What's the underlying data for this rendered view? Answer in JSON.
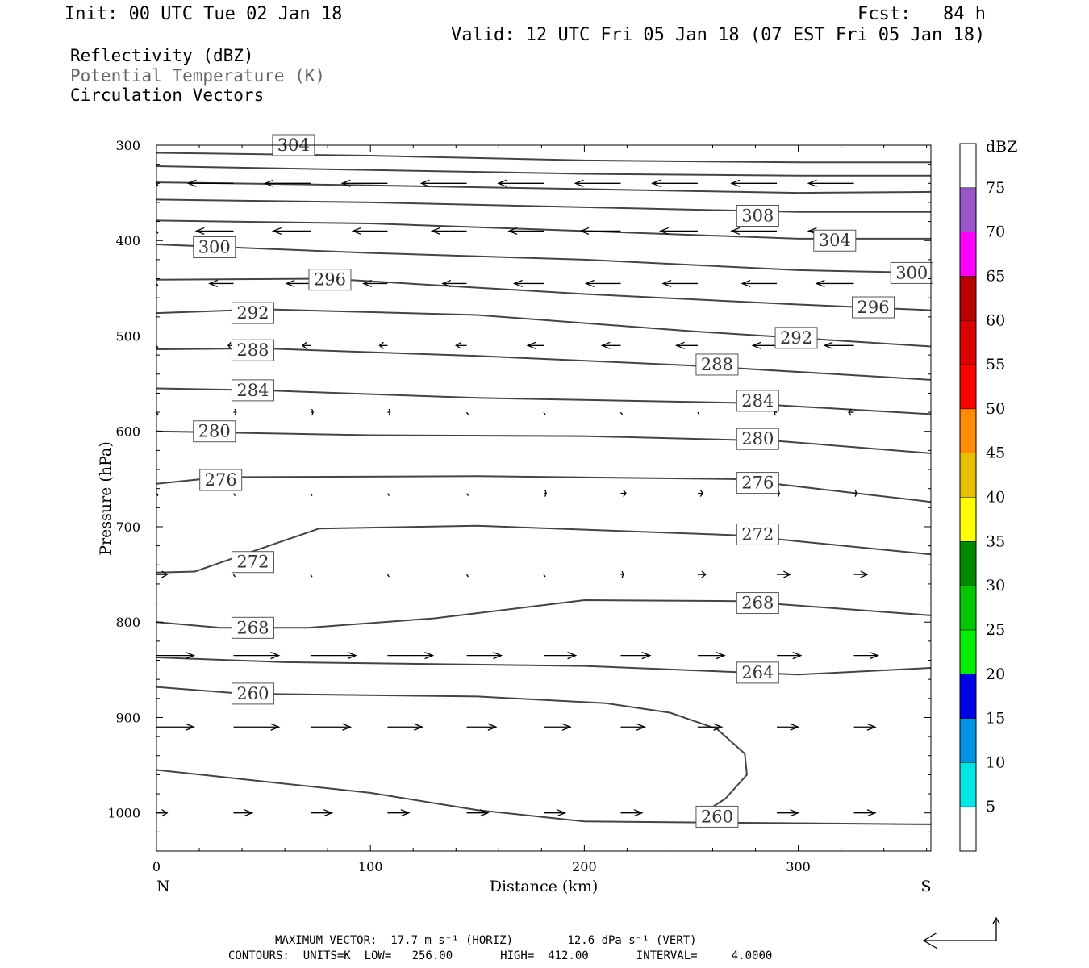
{
  "header": {
    "init": "Init: 00 UTC Tue 02 Jan 18",
    "fcst": "Fcst:   84 h",
    "valid": "Valid: 12 UTC Fri 05 Jan 18 (07 EST Fri 05 Jan 18)"
  },
  "legend": {
    "reflectivity": "Reflectivity (dBZ)",
    "theta": "Potential Temperature (K)",
    "vectors": "Circulation Vectors"
  },
  "footer": {
    "max_vector": "MAXIMUM VECTOR:  17.7 m s⁻¹ (HORIZ)        12.6 dPa s⁻¹ (VERT)",
    "contours": "CONTOURS:  UNITS=K  LOW=   256.00       HIGH=  412.00       INTERVAL=     4.0000"
  },
  "chart_data": {
    "type": "line",
    "title": "",
    "xlabel": "Distance (km)",
    "ylabel": "Pressure (hPa)",
    "xlim": [
      0,
      362
    ],
    "ylim": [
      300,
      1040
    ],
    "y_reversed": true,
    "x_ticks": [
      0,
      100,
      200,
      300
    ],
    "y_ticks": [
      300,
      400,
      500,
      600,
      700,
      800,
      900,
      1000
    ],
    "x_endpoint_labels": {
      "left": "N",
      "right": "S"
    },
    "theta_contours": [
      {
        "label": "308",
        "label_at": [
          272,
          374
        ],
        "points": [
          [
            0,
            308
          ],
          [
            100,
            311
          ],
          [
            200,
            316
          ],
          [
            300,
            318
          ],
          [
            362,
            318
          ]
        ]
      },
      {
        "label": "",
        "points": [
          [
            0,
            322
          ],
          [
            100,
            326
          ],
          [
            200,
            330
          ],
          [
            300,
            332
          ],
          [
            362,
            332
          ]
        ]
      },
      {
        "label": "",
        "points": [
          [
            0,
            339
          ],
          [
            100,
            342
          ],
          [
            200,
            346
          ],
          [
            300,
            350
          ],
          [
            362,
            349
          ]
        ]
      },
      {
        "label": "",
        "points": [
          [
            0,
            357
          ],
          [
            100,
            360
          ],
          [
            200,
            365
          ],
          [
            300,
            370
          ],
          [
            362,
            370
          ]
        ]
      },
      {
        "label": "304",
        "label_at": [
          55,
          300
        ],
        "points": [
          [
            0,
            379
          ],
          [
            100,
            382
          ],
          [
            200,
            390
          ],
          [
            300,
            398
          ],
          [
            362,
            398
          ]
        ]
      },
      {
        "label": "304",
        "label_at": [
          308,
          400
        ],
        "points": [
          [
            0,
            379
          ],
          [
            100,
            382
          ],
          [
            200,
            390
          ],
          [
            300,
            398
          ],
          [
            362,
            398
          ]
        ]
      },
      {
        "label": "300",
        "label_at": [
          18,
          407
        ],
        "points": [
          [
            0,
            404
          ],
          [
            100,
            413
          ],
          [
            200,
            420
          ],
          [
            300,
            431
          ],
          [
            362,
            434
          ]
        ]
      },
      {
        "label": "300",
        "label_at": [
          344,
          434
        ],
        "points": [
          [
            0,
            404
          ],
          [
            100,
            413
          ],
          [
            200,
            420
          ],
          [
            300,
            431
          ],
          [
            362,
            434
          ]
        ]
      },
      {
        "label": "296",
        "label_at": [
          72,
          441
        ],
        "points": [
          [
            0,
            441
          ],
          [
            80,
            440
          ],
          [
            200,
            456
          ],
          [
            300,
            467
          ],
          [
            362,
            473
          ]
        ]
      },
      {
        "label": "296",
        "label_at": [
          326,
          470
        ],
        "points": [
          [
            0,
            441
          ],
          [
            80,
            440
          ],
          [
            200,
            456
          ],
          [
            300,
            467
          ],
          [
            362,
            473
          ]
        ]
      },
      {
        "label": "292",
        "label_at": [
          36,
          476
        ],
        "points": [
          [
            0,
            476
          ],
          [
            50,
            472
          ],
          [
            150,
            478
          ],
          [
            250,
            495
          ],
          [
            362,
            511
          ]
        ]
      },
      {
        "label": "292",
        "label_at": [
          290,
          502
        ],
        "points": [
          [
            0,
            476
          ],
          [
            50,
            472
          ],
          [
            150,
            478
          ],
          [
            250,
            495
          ],
          [
            362,
            511
          ]
        ]
      },
      {
        "label": "288",
        "label_at": [
          36,
          515
        ],
        "points": [
          [
            0,
            514
          ],
          [
            50,
            513
          ],
          [
            150,
            521
          ],
          [
            250,
            531
          ],
          [
            362,
            546
          ]
        ]
      },
      {
        "label": "288",
        "label_at": [
          253,
          530
        ],
        "points": [
          [
            0,
            514
          ],
          [
            50,
            513
          ],
          [
            150,
            521
          ],
          [
            250,
            531
          ],
          [
            362,
            546
          ]
        ]
      },
      {
        "label": "284",
        "label_at": [
          36,
          557
        ],
        "points": [
          [
            0,
            555
          ],
          [
            50,
            557
          ],
          [
            150,
            565
          ],
          [
            270,
            570
          ],
          [
            362,
            582
          ]
        ]
      },
      {
        "label": "284",
        "label_at": [
          272,
          568
        ],
        "points": [
          [
            0,
            555
          ],
          [
            50,
            557
          ],
          [
            150,
            565
          ],
          [
            270,
            570
          ],
          [
            362,
            582
          ]
        ]
      },
      {
        "label": "280",
        "label_at": [
          18,
          600
        ],
        "points": [
          [
            0,
            600
          ],
          [
            100,
            604
          ],
          [
            200,
            605
          ],
          [
            290,
            610
          ],
          [
            362,
            623
          ]
        ]
      },
      {
        "label": "280",
        "label_at": [
          272,
          608
        ],
        "points": [
          [
            0,
            600
          ],
          [
            100,
            604
          ],
          [
            200,
            605
          ],
          [
            290,
            610
          ],
          [
            362,
            623
          ]
        ]
      },
      {
        "label": "276",
        "label_at": [
          21,
          651
        ],
        "points": [
          [
            0,
            655
          ],
          [
            30,
            648
          ],
          [
            150,
            647
          ],
          [
            270,
            650
          ],
          [
            362,
            674
          ]
        ]
      },
      {
        "label": "276",
        "label_at": [
          272,
          654
        ],
        "points": [
          [
            0,
            655
          ],
          [
            30,
            648
          ],
          [
            150,
            647
          ],
          [
            270,
            650
          ],
          [
            362,
            674
          ]
        ]
      },
      {
        "label": "272",
        "label_at": [
          36,
          737
        ],
        "points": [
          [
            0,
            748
          ],
          [
            18,
            747
          ],
          [
            55,
            718
          ],
          [
            76,
            702
          ],
          [
            150,
            699
          ],
          [
            272,
            709
          ],
          [
            362,
            729
          ]
        ]
      },
      {
        "label": "272",
        "label_at": [
          272,
          708
        ],
        "points": [
          [
            0,
            748
          ],
          [
            18,
            747
          ],
          [
            55,
            718
          ],
          [
            76,
            702
          ],
          [
            150,
            699
          ],
          [
            272,
            709
          ],
          [
            362,
            729
          ]
        ]
      },
      {
        "label": "268",
        "label_at": [
          36,
          806
        ],
        "points": [
          [
            0,
            800
          ],
          [
            30,
            806
          ],
          [
            70,
            806
          ],
          [
            130,
            796
          ],
          [
            200,
            777
          ],
          [
            272,
            778
          ],
          [
            362,
            793
          ]
        ]
      },
      {
        "label": "268",
        "label_at": [
          272,
          780
        ],
        "points": [
          [
            0,
            800
          ],
          [
            30,
            806
          ],
          [
            70,
            806
          ],
          [
            130,
            796
          ],
          [
            200,
            777
          ],
          [
            272,
            778
          ],
          [
            362,
            793
          ]
        ]
      },
      {
        "label": "264",
        "label_at": [
          272,
          853
        ],
        "points": [
          [
            0,
            837
          ],
          [
            60,
            842
          ],
          [
            200,
            846
          ],
          [
            300,
            855
          ],
          [
            362,
            848
          ]
        ]
      },
      {
        "label": "260",
        "label_at": [
          36,
          875
        ],
        "points": [
          [
            0,
            868
          ],
          [
            40,
            875
          ],
          [
            150,
            878
          ],
          [
            210,
            885
          ],
          [
            240,
            895
          ],
          [
            262,
            912
          ],
          [
            275,
            938
          ],
          [
            276,
            960
          ],
          [
            266,
            985
          ],
          [
            253,
            1004
          ]
        ]
      },
      {
        "label": "260",
        "label_at": [
          253,
          1004
        ],
        "points": [
          [
            0,
            868
          ],
          [
            40,
            875
          ],
          [
            150,
            878
          ],
          [
            210,
            885
          ],
          [
            240,
            895
          ],
          [
            262,
            912
          ],
          [
            275,
            938
          ],
          [
            276,
            960
          ],
          [
            266,
            985
          ],
          [
            253,
            1004
          ]
        ]
      },
      {
        "label": "",
        "points": [
          [
            0,
            955
          ],
          [
            50,
            967
          ],
          [
            100,
            979
          ],
          [
            150,
            997
          ],
          [
            200,
            1009
          ],
          [
            250,
            1010
          ],
          [
            362,
            1012
          ]
        ]
      }
    ],
    "circulation_vectors": {
      "units": "m s-1 (horizontal), dPa s-1 (vertical)",
      "grid_x_km": [
        0,
        36,
        72,
        108,
        145,
        181,
        217,
        253,
        290,
        326
      ],
      "rows": [
        {
          "p": 340,
          "u": [
            0,
            -17,
            -17,
            -17,
            -17,
            -17,
            -17,
            -17,
            -17,
            -17
          ]
        },
        {
          "p": 390,
          "u": [
            0,
            -14,
            -14,
            -13,
            -13,
            -13,
            -15,
            -14,
            -17,
            -17
          ]
        },
        {
          "p": 445,
          "u": [
            0,
            -9,
            -9,
            -9,
            -9,
            -11,
            -13,
            -13,
            -13,
            -14
          ]
        },
        {
          "p": 510,
          "u": [
            0,
            -2,
            -3,
            -3,
            -4,
            -6,
            -7,
            -8,
            -9,
            -11
          ]
        },
        {
          "p": 580,
          "u": [
            0,
            1,
            1,
            1,
            0,
            0,
            0,
            0,
            -1,
            -2
          ]
        },
        {
          "p": 665,
          "u": [
            0,
            0,
            0,
            0,
            0,
            1,
            2,
            2,
            1,
            1
          ]
        },
        {
          "p": 750,
          "u": [
            4,
            0,
            0,
            0,
            0,
            0,
            1,
            3,
            5,
            5
          ]
        },
        {
          "p": 835,
          "u": [
            14,
            17,
            17,
            17,
            13,
            12,
            11,
            10,
            9,
            9
          ]
        },
        {
          "p": 910,
          "u": [
            14,
            17,
            15,
            13,
            11,
            10,
            9,
            9,
            8,
            8
          ]
        },
        {
          "p": 1000,
          "u": [
            4,
            7,
            8,
            8,
            8,
            8,
            8,
            8,
            8,
            8
          ]
        }
      ]
    },
    "colorbar": {
      "title": "dBZ",
      "labels": [
        "5",
        "10",
        "15",
        "20",
        "25",
        "30",
        "35",
        "40",
        "45",
        "50",
        "55",
        "60",
        "65",
        "70",
        "75"
      ],
      "colors": [
        "#00e5e5",
        "#0096e5",
        "#0000e5",
        "#00ee00",
        "#00c800",
        "#008a00",
        "#ffff00",
        "#e6bf00",
        "#ff8c00",
        "#ff0000",
        "#db0000",
        "#b80000",
        "#ff00ff",
        "#9955c9"
      ]
    },
    "grid": false
  }
}
